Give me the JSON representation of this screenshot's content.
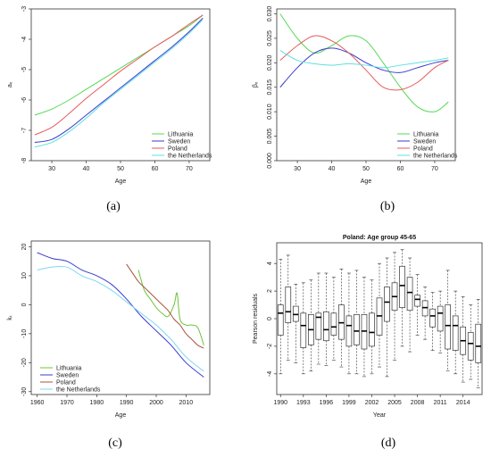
{
  "captions": [
    "(a)",
    "(b)",
    "(c)",
    "(d)"
  ],
  "colors": {
    "Lithuania": "#56d856",
    "Sweden": "#3a3ad0",
    "Poland": "#e85a5a",
    "the Netherlands": "#5ee0e0",
    "c_Lithuania": "#6cc43a",
    "c_Sweden": "#3a3ad0",
    "c_Poland": "#a8543a",
    "c_Netherlands": "#7ad8f0"
  },
  "chart_data": [
    {
      "id": "a",
      "type": "line",
      "xlabel": "Age",
      "ylabel": "aₓ",
      "xlim": [
        24,
        76
      ],
      "ylim": [
        -8,
        -3
      ],
      "xticks": [
        "30",
        "40",
        "50",
        "60",
        "70"
      ],
      "yticks": [
        "-8",
        "-7",
        "-6",
        "-5",
        "-4",
        "-3"
      ],
      "legend": [
        "Lithuania",
        "Sweden",
        "Poland",
        "the Netherlands"
      ],
      "legend_position": "bottom-right",
      "series": [
        {
          "name": "Lithuania",
          "x": [
            25,
            30,
            35,
            40,
            45,
            50,
            55,
            60,
            65,
            70,
            74
          ],
          "y": [
            -6.5,
            -6.3,
            -6.0,
            -5.65,
            -5.3,
            -4.95,
            -4.6,
            -4.25,
            -3.9,
            -3.55,
            -3.2
          ]
        },
        {
          "name": "Sweden",
          "x": [
            25,
            30,
            35,
            40,
            45,
            50,
            55,
            60,
            65,
            70,
            74
          ],
          "y": [
            -7.4,
            -7.3,
            -6.95,
            -6.5,
            -6.05,
            -5.6,
            -5.15,
            -4.7,
            -4.25,
            -3.75,
            -3.3
          ]
        },
        {
          "name": "Poland",
          "x": [
            25,
            30,
            35,
            40,
            45,
            50,
            55,
            60,
            65,
            70,
            74
          ],
          "y": [
            -7.15,
            -6.9,
            -6.45,
            -5.95,
            -5.5,
            -5.05,
            -4.65,
            -4.25,
            -3.9,
            -3.5,
            -3.2
          ]
        },
        {
          "name": "the Netherlands",
          "x": [
            25,
            30,
            35,
            40,
            45,
            50,
            55,
            60,
            65,
            70,
            74
          ],
          "y": [
            -7.55,
            -7.4,
            -7.05,
            -6.6,
            -6.1,
            -5.65,
            -5.2,
            -4.75,
            -4.3,
            -3.8,
            -3.35
          ]
        }
      ]
    },
    {
      "id": "b",
      "type": "line",
      "xlabel": "Age",
      "ylabel": "βₓ",
      "xlim": [
        24,
        76
      ],
      "ylim": [
        0,
        0.031
      ],
      "xticks": [
        "30",
        "40",
        "50",
        "60",
        "70"
      ],
      "yticks": [
        "0.000",
        "0.005",
        "0.010",
        "0.015",
        "0.020",
        "0.025",
        "0.030"
      ],
      "legend": [
        "Lithuania",
        "Sweden",
        "Poland",
        "the Netherlands"
      ],
      "legend_position": "bottom-right",
      "series": [
        {
          "name": "Lithuania",
          "x": [
            25,
            30,
            35,
            40,
            45,
            50,
            55,
            60,
            65,
            70,
            74
          ],
          "y": [
            0.03,
            0.025,
            0.022,
            0.0235,
            0.0255,
            0.0245,
            0.02,
            0.015,
            0.011,
            0.01,
            0.012
          ]
        },
        {
          "name": "Sweden",
          "x": [
            25,
            30,
            35,
            40,
            45,
            50,
            55,
            60,
            65,
            70,
            74
          ],
          "y": [
            0.015,
            0.019,
            0.022,
            0.023,
            0.022,
            0.02,
            0.0185,
            0.018,
            0.019,
            0.02,
            0.0205
          ]
        },
        {
          "name": "Poland",
          "x": [
            25,
            30,
            35,
            40,
            45,
            50,
            55,
            60,
            65,
            70,
            74
          ],
          "y": [
            0.0205,
            0.0235,
            0.0255,
            0.0245,
            0.022,
            0.0185,
            0.015,
            0.0145,
            0.016,
            0.019,
            0.0205
          ]
        },
        {
          "name": "the Netherlands",
          "x": [
            25,
            30,
            35,
            40,
            45,
            50,
            55,
            60,
            65,
            70,
            74
          ],
          "y": [
            0.0225,
            0.0205,
            0.0198,
            0.0195,
            0.0198,
            0.0195,
            0.019,
            0.0195,
            0.02,
            0.0205,
            0.021
          ]
        }
      ]
    },
    {
      "id": "c",
      "type": "line",
      "xlabel": "Age",
      "ylabel": "kₜ",
      "xlim": [
        1958,
        2018
      ],
      "ylim": [
        -31,
        22
      ],
      "xticks": [
        "1960",
        "1970",
        "1980",
        "1990",
        "2000",
        "2010"
      ],
      "yticks": [
        "-30",
        "-20",
        "-10",
        "0",
        "10",
        "20"
      ],
      "legend": [
        "Lithuania",
        "Sweden",
        "Poland",
        "the Netherlands"
      ],
      "legend_position": "bottom-left",
      "series": [
        {
          "name": "Lithuania",
          "x": [
            1994,
            1996,
            1998,
            2000,
            2002,
            2004,
            2006,
            2007,
            2008,
            2010,
            2012,
            2014,
            2016
          ],
          "y": [
            12,
            5,
            2,
            -1,
            -3,
            -4,
            0,
            4,
            -5,
            -7,
            -7,
            -8,
            -14
          ]
        },
        {
          "name": "Sweden",
          "x": [
            1960,
            1965,
            1970,
            1975,
            1980,
            1985,
            1990,
            1995,
            2000,
            2005,
            2010,
            2016
          ],
          "y": [
            18,
            16,
            15,
            12,
            10,
            7,
            2,
            -4,
            -9,
            -14,
            -20,
            -25
          ]
        },
        {
          "name": "Poland",
          "x": [
            1990,
            1992,
            1994,
            1996,
            1998,
            2000,
            2002,
            2004,
            2006,
            2008,
            2010,
            2012,
            2014,
            2016
          ],
          "y": [
            14,
            11,
            8,
            6,
            4,
            2,
            0,
            -2,
            -5,
            -7,
            -10,
            -12,
            -14,
            -15
          ]
        },
        {
          "name": "the Netherlands",
          "x": [
            1960,
            1965,
            1970,
            1975,
            1980,
            1985,
            1990,
            1995,
            2000,
            2005,
            2010,
            2016
          ],
          "y": [
            12,
            13,
            13,
            10,
            8,
            5,
            1,
            -3,
            -7,
            -12,
            -18,
            -23
          ]
        }
      ]
    },
    {
      "id": "d",
      "type": "box",
      "title": "Poland: Age group 45-65",
      "xlabel": "Year",
      "ylabel": "Pearson residuals",
      "ylim": [
        -5.5,
        5.5
      ],
      "yticks": [
        "-4",
        "-2",
        "0",
        "2",
        "4"
      ],
      "xticks": [
        "1990",
        "1993",
        "1996",
        "1999",
        "2002",
        "2005",
        "2008",
        "2011",
        "2014"
      ],
      "years": [
        1990,
        1991,
        1992,
        1993,
        1994,
        1995,
        1996,
        1997,
        1998,
        1999,
        2000,
        2001,
        2002,
        2003,
        2004,
        2005,
        2006,
        2007,
        2008,
        2009,
        2010,
        2011,
        2012,
        2013,
        2014,
        2015,
        2016
      ],
      "boxes": [
        {
          "q1": -1.2,
          "med": 0.4,
          "q3": 1.0,
          "lo": -4.0,
          "hi": 4.3
        },
        {
          "q1": -0.3,
          "med": 0.5,
          "q3": 2.3,
          "lo": -3.0,
          "hi": 4.6
        },
        {
          "q1": -0.2,
          "med": 0.3,
          "q3": 0.9,
          "lo": -3.2,
          "hi": 2.5
        },
        {
          "q1": -2.1,
          "med": -0.5,
          "q3": 0.4,
          "lo": -4.0,
          "hi": 2.6
        },
        {
          "q1": -1.9,
          "med": -0.8,
          "q3": 0.3,
          "lo": -3.8,
          "hi": 2.8
        },
        {
          "q1": -1.5,
          "med": 0.1,
          "q3": 0.4,
          "lo": -3.3,
          "hi": 3.3
        },
        {
          "q1": -1.6,
          "med": -0.8,
          "q3": 0.5,
          "lo": -3.4,
          "hi": 3.3
        },
        {
          "q1": -1.2,
          "med": -0.6,
          "q3": 0.4,
          "lo": -3.0,
          "hi": 3.0
        },
        {
          "q1": -1.5,
          "med": -0.3,
          "q3": 1.0,
          "lo": -3.5,
          "hi": 3.6
        },
        {
          "q1": -2.0,
          "med": -0.5,
          "q3": 0.2,
          "lo": -4.0,
          "hi": 3.3
        },
        {
          "q1": -1.9,
          "med": -0.9,
          "q3": 0.3,
          "lo": -4.0,
          "hi": 3.5
        },
        {
          "q1": -2.2,
          "med": -0.9,
          "q3": 0.3,
          "lo": -4.2,
          "hi": 3.0
        },
        {
          "q1": -2.0,
          "med": -1.0,
          "q3": 0.4,
          "lo": -4.0,
          "hi": 2.8
        },
        {
          "q1": -1.2,
          "med": 0.2,
          "q3": 1.5,
          "lo": -3.5,
          "hi": 4.0
        },
        {
          "q1": -0.2,
          "med": 1.2,
          "q3": 2.3,
          "lo": -4.2,
          "hi": 4.4
        },
        {
          "q1": 0.6,
          "med": 1.6,
          "q3": 2.6,
          "lo": -3.0,
          "hi": 4.8
        },
        {
          "q1": 0.8,
          "med": 2.4,
          "q3": 3.8,
          "lo": -2.0,
          "hi": 5.0
        },
        {
          "q1": 0.6,
          "med": 1.9,
          "q3": 3.0,
          "lo": -2.4,
          "hi": 4.4
        },
        {
          "q1": 0.9,
          "med": 1.4,
          "q3": 1.7,
          "lo": -1.2,
          "hi": 3.2
        },
        {
          "q1": 0.2,
          "med": 0.8,
          "q3": 1.3,
          "lo": -1.5,
          "hi": 2.3
        },
        {
          "q1": -0.6,
          "med": 0.2,
          "q3": 0.7,
          "lo": -2.3,
          "hi": 1.9
        },
        {
          "q1": -0.9,
          "med": 0.4,
          "q3": 0.9,
          "lo": -2.5,
          "hi": 2.0
        },
        {
          "q1": -2.2,
          "med": -0.5,
          "q3": 1.0,
          "lo": -3.8,
          "hi": 3.5
        },
        {
          "q1": -2.3,
          "med": -0.5,
          "q3": 0.2,
          "lo": -4.0,
          "hi": 2.0
        },
        {
          "q1": -2.6,
          "med": -1.6,
          "q3": -0.6,
          "lo": -4.6,
          "hi": 1.6
        },
        {
          "q1": -3.0,
          "med": -1.8,
          "q3": -1.0,
          "lo": -4.4,
          "hi": 1.0
        },
        {
          "q1": -3.2,
          "med": -2.0,
          "q3": -0.4,
          "lo": -5.0,
          "hi": 1.4
        }
      ]
    }
  ]
}
